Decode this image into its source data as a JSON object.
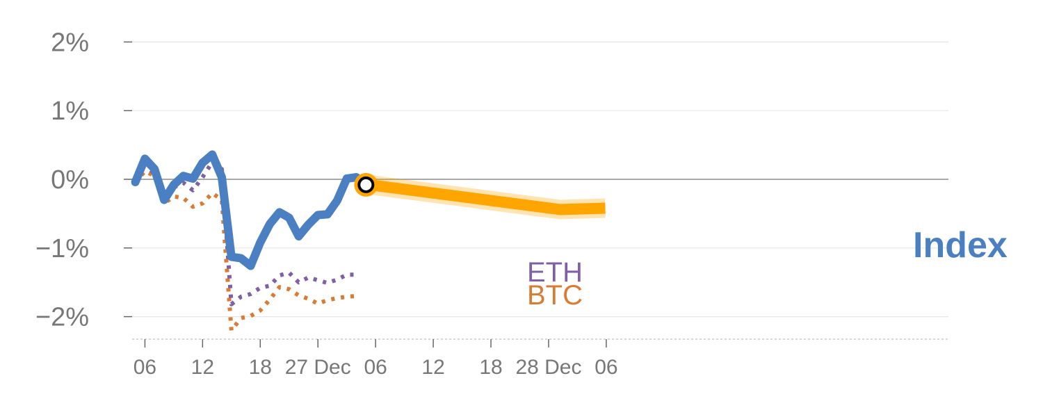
{
  "colors": {
    "index": "#4a7fc1",
    "eth": "#7f5fa6",
    "btc": "#d97b32",
    "forecast": "#ffa500",
    "grid": "#e6e6e6",
    "zero": "#8c8c8c",
    "tick_text": "#777777"
  },
  "chart_data": {
    "type": "line",
    "title": "",
    "xlabel": "",
    "ylabel": "",
    "ylim": [
      -2.3,
      2
    ],
    "y_ticks": [
      {
        "value": 2,
        "label": "2%"
      },
      {
        "value": 1,
        "label": "1%"
      },
      {
        "value": 0,
        "label": "0%"
      },
      {
        "value": -1,
        "label": "−1%"
      },
      {
        "value": -2,
        "label": "−2%"
      }
    ],
    "x_domain": [
      -2.2,
      83.6
    ],
    "x_ticks": [
      {
        "value": 0,
        "label": "06"
      },
      {
        "value": 6,
        "label": "12"
      },
      {
        "value": 12,
        "label": "18"
      },
      {
        "value": 18,
        "label": "27 Dec"
      },
      {
        "value": 24,
        "label": "06"
      },
      {
        "value": 30,
        "label": "12"
      },
      {
        "value": 36,
        "label": "18"
      },
      {
        "value": 42,
        "label": "28 Dec"
      },
      {
        "value": 48,
        "label": "06"
      }
    ],
    "grid": true,
    "series": [
      {
        "name": "Index",
        "style": "solid",
        "x": [
          -1,
          0,
          1,
          2,
          3,
          4,
          5,
          6,
          7,
          8,
          9,
          10,
          11,
          12,
          13,
          14,
          15,
          16,
          17,
          18,
          19,
          20,
          21,
          22,
          23
        ],
        "values": [
          -0.04,
          0.3,
          0.15,
          -0.3,
          -0.08,
          0.05,
          0.01,
          0.24,
          0.36,
          0.03,
          -1.13,
          -1.15,
          -1.26,
          -0.92,
          -0.65,
          -0.48,
          -0.56,
          -0.83,
          -0.66,
          -0.52,
          -0.51,
          -0.31,
          0.01,
          0.03,
          -0.08
        ]
      },
      {
        "name": "ETH",
        "style": "dotted",
        "x": [
          -1,
          0,
          1,
          2,
          3,
          4,
          5,
          6,
          7,
          8,
          9,
          10,
          11,
          12,
          13,
          14,
          15,
          16,
          17,
          18,
          19,
          20,
          21,
          22
        ],
        "values": [
          -0.05,
          0.22,
          0.08,
          -0.3,
          -0.12,
          -0.05,
          -0.16,
          0.03,
          0.25,
          0.15,
          -1.82,
          -1.71,
          -1.67,
          -1.58,
          -1.55,
          -1.4,
          -1.36,
          -1.5,
          -1.43,
          -1.47,
          -1.51,
          -1.46,
          -1.39,
          -1.39
        ]
      },
      {
        "name": "BTC",
        "style": "dotted",
        "x": [
          -1,
          0,
          1,
          2,
          3,
          4,
          5,
          6,
          7,
          8,
          9,
          10,
          11,
          12,
          13,
          14,
          15,
          16,
          17,
          18,
          19,
          20,
          21,
          22
        ],
        "values": [
          -0.05,
          0.12,
          0.05,
          -0.35,
          -0.25,
          -0.27,
          -0.4,
          -0.35,
          -0.2,
          -0.3,
          -2.2,
          -2.02,
          -1.99,
          -1.91,
          -1.75,
          -1.57,
          -1.6,
          -1.69,
          -1.74,
          -1.81,
          -1.76,
          -1.73,
          -1.71,
          -1.7
        ]
      },
      {
        "name": "forecast",
        "style": "band",
        "x": [
          23.4,
          43.2,
          47.9
        ],
        "values": [
          -0.08,
          -0.44,
          -0.42
        ]
      }
    ],
    "annotations": [
      {
        "text": "Index",
        "series": "Index"
      },
      {
        "text": "ETH",
        "series": "ETH"
      },
      {
        "text": "BTC",
        "series": "BTC"
      }
    ]
  }
}
